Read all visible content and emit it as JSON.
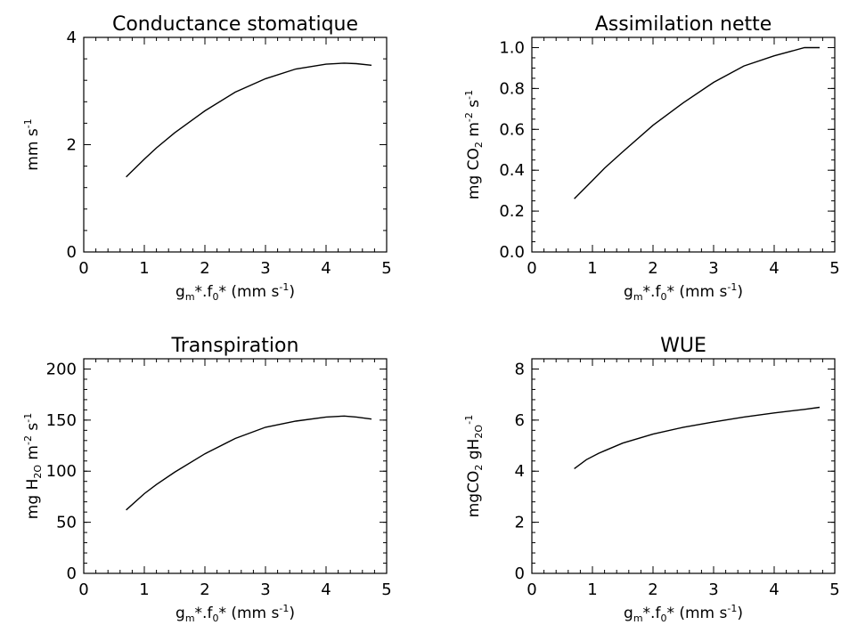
{
  "chart_data": [
    {
      "type": "line",
      "title": "Conductance stomatique",
      "xlabel": "g_m*.f_0* (mm s^-1)",
      "ylabel": "mm s^-1",
      "xlim": [
        0,
        5
      ],
      "ylim": [
        0,
        4
      ],
      "xticks": [
        "0",
        "1",
        "2",
        "3",
        "4",
        "5"
      ],
      "yticks": [
        "0",
        "2",
        "4"
      ],
      "series": [
        {
          "x": [
            0.7,
            1.0,
            1.2,
            1.5,
            2.0,
            2.5,
            3.0,
            3.5,
            4.0,
            4.3,
            4.5,
            4.75
          ],
          "y": [
            1.4,
            1.73,
            1.94,
            2.22,
            2.63,
            2.98,
            3.23,
            3.41,
            3.5,
            3.52,
            3.51,
            3.48
          ]
        }
      ]
    },
    {
      "type": "line",
      "title": "Assimilation nette",
      "xlabel": "g_m*.f_0* (mm s^-1)",
      "ylabel": "mg CO_2 m^-2 s^-1",
      "xlim": [
        0,
        5
      ],
      "ylim": [
        0,
        1.05
      ],
      "xticks": [
        "0",
        "1",
        "2",
        "3",
        "4",
        "5"
      ],
      "yticks": [
        "0.0",
        "0.2",
        "0.4",
        "0.6",
        "0.8",
        "1.0"
      ],
      "series": [
        {
          "x": [
            0.7,
            1.0,
            1.2,
            1.5,
            2.0,
            2.5,
            3.0,
            3.5,
            4.0,
            4.5,
            4.75
          ],
          "y": [
            0.26,
            0.35,
            0.41,
            0.49,
            0.62,
            0.73,
            0.83,
            0.91,
            0.96,
            1.0,
            1.0
          ]
        }
      ]
    },
    {
      "type": "line",
      "title": "Transpiration",
      "xlabel": "g_m*.f_0* (mm s^-1)",
      "ylabel": "mg H_2O m^-2 s^-1",
      "xlim": [
        0,
        5
      ],
      "ylim": [
        0,
        210
      ],
      "xticks": [
        "0",
        "1",
        "2",
        "3",
        "4",
        "5"
      ],
      "yticks": [
        "0",
        "50",
        "100",
        "150",
        "200"
      ],
      "series": [
        {
          "x": [
            0.7,
            1.0,
            1.2,
            1.5,
            2.0,
            2.5,
            3.0,
            3.5,
            4.0,
            4.3,
            4.5,
            4.75
          ],
          "y": [
            62,
            78,
            87,
            99,
            117,
            132,
            143,
            149,
            153,
            154,
            153,
            151
          ]
        }
      ]
    },
    {
      "type": "line",
      "title": "WUE",
      "xlabel": "g_m*.f_0* (mm s^-1)",
      "ylabel": "mgCO_2 gH_2O^-1",
      "xlim": [
        0,
        5
      ],
      "ylim": [
        0,
        8.4
      ],
      "xticks": [
        "0",
        "1",
        "2",
        "3",
        "4",
        "5"
      ],
      "yticks": [
        "0",
        "2",
        "4",
        "6",
        "8"
      ],
      "series": [
        {
          "x": [
            0.7,
            0.9,
            1.1,
            1.2,
            1.5,
            2.0,
            2.5,
            3.0,
            3.5,
            4.0,
            4.5,
            4.75
          ],
          "y": [
            4.1,
            4.45,
            4.7,
            4.8,
            5.1,
            5.45,
            5.72,
            5.93,
            6.12,
            6.28,
            6.42,
            6.5
          ]
        }
      ]
    }
  ]
}
